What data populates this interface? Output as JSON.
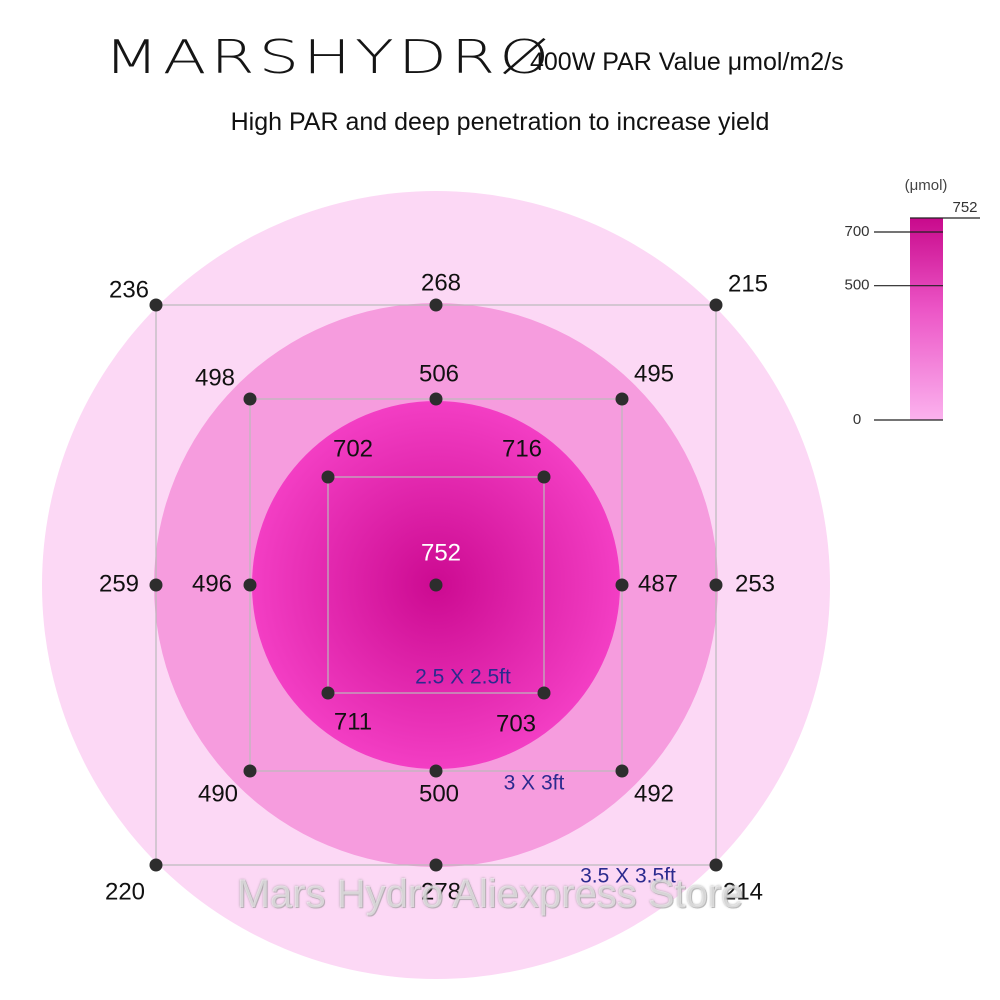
{
  "header": {
    "logo_text": "MARSHYDRØ",
    "headline": "400W PAR Value μmol/m2/s",
    "subtitle": "High PAR and deep penetration to increase yield"
  },
  "watermark": "Mars Hydro Aliexpress Store",
  "colors": {
    "outer_zone": "#fcd8f5",
    "middle_zone": "#f69cde",
    "inner_zone_center": "#cc0a91",
    "inner_zone_edge": "#f33ec4",
    "grid_line": "#bbbbbb",
    "point": "#2d2d2d",
    "coverage_label": "#2b2a8e"
  },
  "chart_data": {
    "type": "heatmap",
    "unit": "μmol/m2/s",
    "center": {
      "value": 752
    },
    "coverages": [
      {
        "label": "2.5 X 2.5ft",
        "points": [
          {
            "pos": "top-left",
            "value": 702
          },
          {
            "pos": "top-right",
            "value": 716
          },
          {
            "pos": "bottom-left",
            "value": 711
          },
          {
            "pos": "bottom-right",
            "value": 703
          }
        ]
      },
      {
        "label": "3 X 3ft",
        "points": [
          {
            "pos": "top-left",
            "value": 498
          },
          {
            "pos": "top",
            "value": 506
          },
          {
            "pos": "top-right",
            "value": 495
          },
          {
            "pos": "left",
            "value": 496
          },
          {
            "pos": "right",
            "value": 487
          },
          {
            "pos": "bottom-left",
            "value": 490
          },
          {
            "pos": "bottom",
            "value": 500
          },
          {
            "pos": "bottom-right",
            "value": 492
          }
        ]
      },
      {
        "label": "3.5 X 3.5ft",
        "points": [
          {
            "pos": "top-left",
            "value": 236
          },
          {
            "pos": "top",
            "value": 268
          },
          {
            "pos": "top-right",
            "value": 215
          },
          {
            "pos": "left",
            "value": 259
          },
          {
            "pos": "right",
            "value": 253
          },
          {
            "pos": "bottom-left",
            "value": 220
          },
          {
            "pos": "bottom",
            "value": 278
          },
          {
            "pos": "bottom-right",
            "value": 214
          }
        ]
      }
    ],
    "legend": {
      "title": "(μmol)",
      "max_label": "752",
      "ticks": [
        0,
        500,
        700
      ],
      "range": [
        0,
        752
      ],
      "placement": "top-right"
    }
  }
}
